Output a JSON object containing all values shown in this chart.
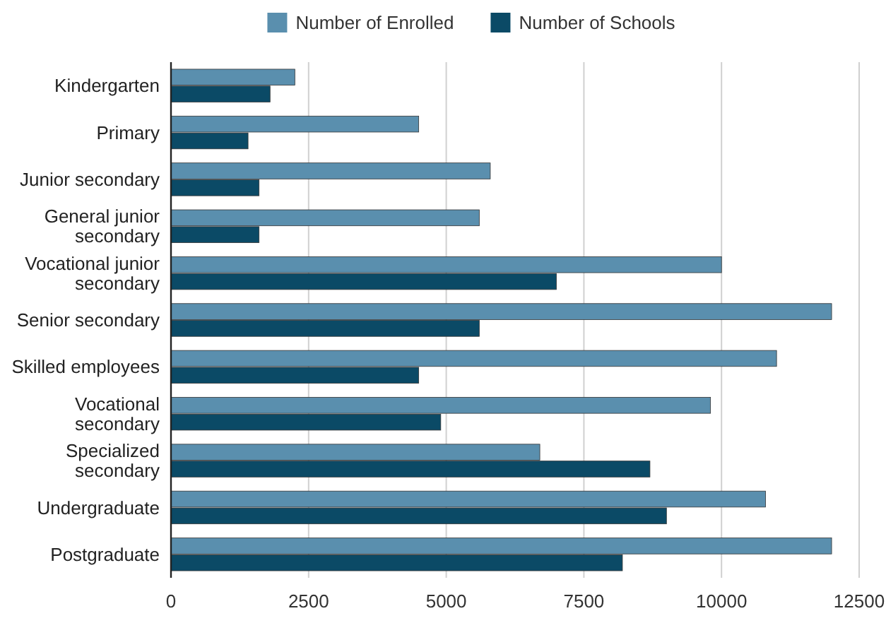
{
  "chart_data": {
    "type": "bar",
    "orientation": "horizontal",
    "categories": [
      "Kindergarten",
      "Primary",
      "Junior secondary",
      "General junior secondary",
      "Vocational junior secondary",
      "Senior secondary",
      "Skilled employees",
      "Vocational secondary",
      "Specialized secondary",
      "Undergraduate",
      "Postgraduate"
    ],
    "series": [
      {
        "name": "Number of Enrolled",
        "color": "#5a8fae",
        "values": [
          2250,
          4500,
          5800,
          5600,
          10000,
          12000,
          11000,
          9800,
          6700,
          10800,
          12000
        ]
      },
      {
        "name": "Number of Schools",
        "color": "#0b4a66",
        "values": [
          1800,
          1400,
          1600,
          1600,
          7000,
          5600,
          4500,
          4900,
          8700,
          9000,
          8200
        ]
      }
    ],
    "xlim": [
      0,
      12500
    ],
    "xticks": [
      0,
      2500,
      5000,
      7500,
      10000,
      12500
    ],
    "grid": "x",
    "legend": "top"
  }
}
